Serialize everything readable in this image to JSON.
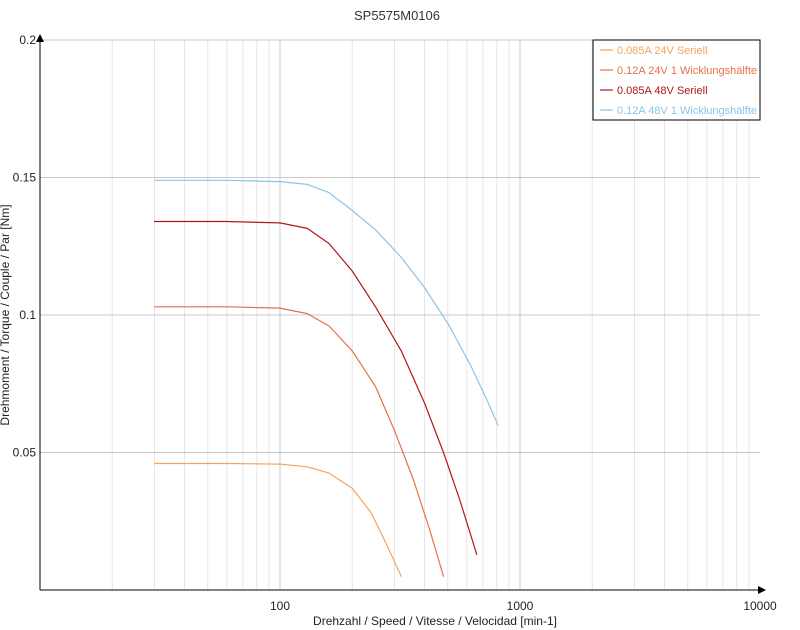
{
  "chart_data": {
    "type": "line",
    "title": "SP5575M0106",
    "xlabel": "Drehzahl / Speed / Vitesse / Velocidad [min-1]",
    "ylabel": "Drehmoment / Torque / Couple / Par [Nm]",
    "x_scale": "log",
    "xlim": [
      10,
      10000
    ],
    "ylim": [
      0,
      0.2
    ],
    "x_ticks": [
      {
        "value": 100,
        "label": "100"
      },
      {
        "value": 1000,
        "label": "1000"
      },
      {
        "value": 10000,
        "label": "10000"
      }
    ],
    "y_ticks": [
      {
        "value": 0.05,
        "label": "0.05"
      },
      {
        "value": 0.1,
        "label": "0.1"
      },
      {
        "value": 0.15,
        "label": "0.15"
      },
      {
        "value": 0.2,
        "label": "0.2"
      }
    ],
    "grid": true,
    "legend_position": "top-right",
    "series": [
      {
        "name": "0.085A  24V  Seriell",
        "color": "#f4a460",
        "x": [
          30,
          60,
          100,
          130,
          160,
          200,
          240,
          280,
          320
        ],
        "y": [
          0.046,
          0.046,
          0.0458,
          0.0448,
          0.0425,
          0.037,
          0.028,
          0.016,
          0.005
        ]
      },
      {
        "name": "0.12A  24V  1 Wicklungshälfte",
        "color": "#e8704a",
        "x": [
          30,
          60,
          100,
          130,
          160,
          200,
          250,
          300,
          360,
          420,
          480
        ],
        "y": [
          0.103,
          0.103,
          0.1025,
          0.1005,
          0.096,
          0.087,
          0.074,
          0.058,
          0.04,
          0.022,
          0.005
        ]
      },
      {
        "name": "0.085A  48V  Seriell",
        "color": "#b01818",
        "x": [
          30,
          60,
          100,
          130,
          160,
          200,
          250,
          320,
          400,
          480,
          560,
          660
        ],
        "y": [
          0.134,
          0.134,
          0.1335,
          0.1315,
          0.126,
          0.116,
          0.103,
          0.087,
          0.068,
          0.05,
          0.033,
          0.013
        ]
      },
      {
        "name": "0.12A  48V  1 Wicklungshälfte",
        "color": "#8cc4e8",
        "x": [
          30,
          60,
          100,
          130,
          160,
          200,
          250,
          320,
          400,
          500,
          620,
          720,
          810
        ],
        "y": [
          0.149,
          0.149,
          0.1485,
          0.1475,
          0.1445,
          0.138,
          0.131,
          0.121,
          0.11,
          0.097,
          0.082,
          0.07,
          0.06
        ]
      }
    ]
  }
}
